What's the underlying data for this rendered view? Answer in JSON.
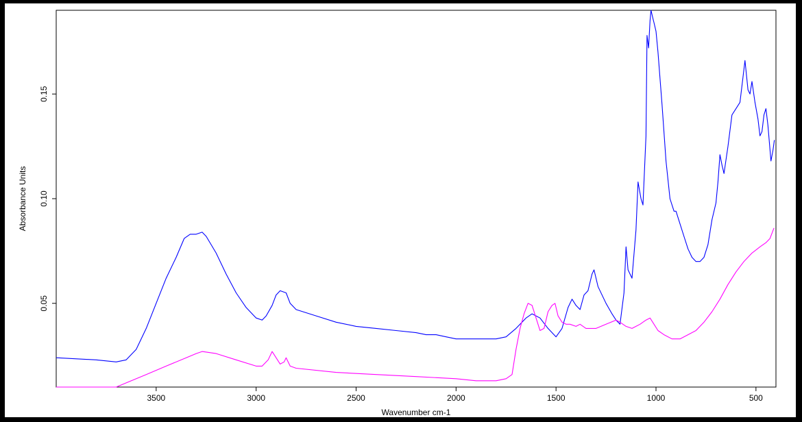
{
  "chart_data": {
    "type": "line",
    "xlabel": "Wavenumber cm-1",
    "ylabel": "Absorbance Units",
    "xlim": [
      4000,
      400
    ],
    "ylim": [
      0.01,
      0.19
    ],
    "x_ticks": [
      3500,
      3000,
      2500,
      2000,
      1500,
      1000,
      500
    ],
    "x_tick_labels": [
      "3500",
      "3000",
      "2500",
      "2000",
      "1500",
      "1000",
      "500"
    ],
    "y_ticks": [
      0.05,
      0.1,
      0.15
    ],
    "y_tick_labels": [
      "0.05",
      "0.10",
      "0.15"
    ],
    "grid": false,
    "legend": "none",
    "series": [
      {
        "color": "#0000ff",
        "points": [
          [
            4000,
            0.024
          ],
          [
            3800,
            0.023
          ],
          [
            3700,
            0.022
          ],
          [
            3650,
            0.023
          ],
          [
            3600,
            0.028
          ],
          [
            3550,
            0.038
          ],
          [
            3500,
            0.05
          ],
          [
            3450,
            0.062
          ],
          [
            3400,
            0.072
          ],
          [
            3360,
            0.081
          ],
          [
            3330,
            0.083
          ],
          [
            3300,
            0.083
          ],
          [
            3270,
            0.084
          ],
          [
            3250,
            0.082
          ],
          [
            3200,
            0.074
          ],
          [
            3150,
            0.064
          ],
          [
            3100,
            0.055
          ],
          [
            3050,
            0.048
          ],
          [
            3000,
            0.043
          ],
          [
            2970,
            0.042
          ],
          [
            2950,
            0.044
          ],
          [
            2920,
            0.049
          ],
          [
            2900,
            0.054
          ],
          [
            2880,
            0.056
          ],
          [
            2850,
            0.055
          ],
          [
            2830,
            0.05
          ],
          [
            2800,
            0.047
          ],
          [
            2700,
            0.044
          ],
          [
            2600,
            0.041
          ],
          [
            2500,
            0.039
          ],
          [
            2400,
            0.038
          ],
          [
            2300,
            0.037
          ],
          [
            2200,
            0.036
          ],
          [
            2150,
            0.035
          ],
          [
            2100,
            0.035
          ],
          [
            2050,
            0.034
          ],
          [
            2000,
            0.033
          ],
          [
            1950,
            0.033
          ],
          [
            1900,
            0.033
          ],
          [
            1800,
            0.033
          ],
          [
            1750,
            0.034
          ],
          [
            1700,
            0.038
          ],
          [
            1650,
            0.043
          ],
          [
            1620,
            0.045
          ],
          [
            1580,
            0.043
          ],
          [
            1540,
            0.038
          ],
          [
            1500,
            0.034
          ],
          [
            1470,
            0.038
          ],
          [
            1440,
            0.048
          ],
          [
            1420,
            0.052
          ],
          [
            1400,
            0.049
          ],
          [
            1380,
            0.047
          ],
          [
            1360,
            0.054
          ],
          [
            1340,
            0.056
          ],
          [
            1320,
            0.064
          ],
          [
            1310,
            0.066
          ],
          [
            1290,
            0.058
          ],
          [
            1250,
            0.05
          ],
          [
            1220,
            0.045
          ],
          [
            1200,
            0.042
          ],
          [
            1180,
            0.04
          ],
          [
            1160,
            0.055
          ],
          [
            1150,
            0.077
          ],
          [
            1140,
            0.066
          ],
          [
            1120,
            0.062
          ],
          [
            1100,
            0.085
          ],
          [
            1090,
            0.108
          ],
          [
            1075,
            0.1
          ],
          [
            1065,
            0.097
          ],
          [
            1050,
            0.13
          ],
          [
            1045,
            0.178
          ],
          [
            1037,
            0.172
          ],
          [
            1030,
            0.185
          ],
          [
            1025,
            0.19
          ],
          [
            1015,
            0.186
          ],
          [
            1010,
            0.184
          ],
          [
            1000,
            0.18
          ],
          [
            990,
            0.17
          ],
          [
            970,
            0.145
          ],
          [
            950,
            0.118
          ],
          [
            930,
            0.1
          ],
          [
            910,
            0.094
          ],
          [
            900,
            0.094
          ],
          [
            880,
            0.088
          ],
          [
            860,
            0.082
          ],
          [
            840,
            0.076
          ],
          [
            820,
            0.072
          ],
          [
            800,
            0.07
          ],
          [
            780,
            0.07
          ],
          [
            760,
            0.072
          ],
          [
            740,
            0.078
          ],
          [
            720,
            0.09
          ],
          [
            700,
            0.098
          ],
          [
            690,
            0.108
          ],
          [
            680,
            0.121
          ],
          [
            670,
            0.116
          ],
          [
            660,
            0.112
          ],
          [
            640,
            0.125
          ],
          [
            620,
            0.14
          ],
          [
            600,
            0.143
          ],
          [
            580,
            0.146
          ],
          [
            565,
            0.158
          ],
          [
            555,
            0.166
          ],
          [
            540,
            0.152
          ],
          [
            530,
            0.15
          ],
          [
            520,
            0.156
          ],
          [
            505,
            0.146
          ],
          [
            490,
            0.138
          ],
          [
            480,
            0.13
          ],
          [
            470,
            0.132
          ],
          [
            460,
            0.14
          ],
          [
            450,
            0.143
          ],
          [
            440,
            0.135
          ],
          [
            425,
            0.118
          ],
          [
            415,
            0.123
          ],
          [
            408,
            0.128
          ]
        ]
      },
      {
        "color": "#ff00ff",
        "points": [
          [
            4000,
            0.01
          ],
          [
            3800,
            0.01
          ],
          [
            3700,
            0.01
          ],
          [
            3650,
            0.012
          ],
          [
            3550,
            0.016
          ],
          [
            3450,
            0.02
          ],
          [
            3350,
            0.024
          ],
          [
            3300,
            0.026
          ],
          [
            3270,
            0.027
          ],
          [
            3200,
            0.026
          ],
          [
            3100,
            0.023
          ],
          [
            3000,
            0.02
          ],
          [
            2970,
            0.02
          ],
          [
            2940,
            0.023
          ],
          [
            2920,
            0.027
          ],
          [
            2900,
            0.024
          ],
          [
            2880,
            0.021
          ],
          [
            2860,
            0.022
          ],
          [
            2850,
            0.024
          ],
          [
            2830,
            0.02
          ],
          [
            2800,
            0.019
          ],
          [
            2600,
            0.017
          ],
          [
            2400,
            0.016
          ],
          [
            2200,
            0.015
          ],
          [
            2000,
            0.014
          ],
          [
            1900,
            0.013
          ],
          [
            1800,
            0.013
          ],
          [
            1750,
            0.014
          ],
          [
            1720,
            0.016
          ],
          [
            1700,
            0.028
          ],
          [
            1680,
            0.038
          ],
          [
            1660,
            0.045
          ],
          [
            1640,
            0.05
          ],
          [
            1620,
            0.049
          ],
          [
            1600,
            0.043
          ],
          [
            1580,
            0.037
          ],
          [
            1560,
            0.038
          ],
          [
            1540,
            0.046
          ],
          [
            1520,
            0.049
          ],
          [
            1505,
            0.05
          ],
          [
            1490,
            0.044
          ],
          [
            1470,
            0.041
          ],
          [
            1450,
            0.04
          ],
          [
            1430,
            0.04
          ],
          [
            1400,
            0.039
          ],
          [
            1380,
            0.04
          ],
          [
            1350,
            0.038
          ],
          [
            1300,
            0.038
          ],
          [
            1250,
            0.04
          ],
          [
            1200,
            0.042
          ],
          [
            1180,
            0.041
          ],
          [
            1150,
            0.039
          ],
          [
            1120,
            0.038
          ],
          [
            1100,
            0.039
          ],
          [
            1080,
            0.04
          ],
          [
            1050,
            0.042
          ],
          [
            1030,
            0.043
          ],
          [
            1010,
            0.04
          ],
          [
            990,
            0.037
          ],
          [
            960,
            0.035
          ],
          [
            920,
            0.033
          ],
          [
            880,
            0.033
          ],
          [
            840,
            0.035
          ],
          [
            800,
            0.037
          ],
          [
            760,
            0.041
          ],
          [
            720,
            0.046
          ],
          [
            680,
            0.052
          ],
          [
            640,
            0.059
          ],
          [
            600,
            0.065
          ],
          [
            560,
            0.07
          ],
          [
            520,
            0.074
          ],
          [
            480,
            0.077
          ],
          [
            450,
            0.079
          ],
          [
            430,
            0.081
          ],
          [
            410,
            0.086
          ]
        ]
      }
    ]
  }
}
